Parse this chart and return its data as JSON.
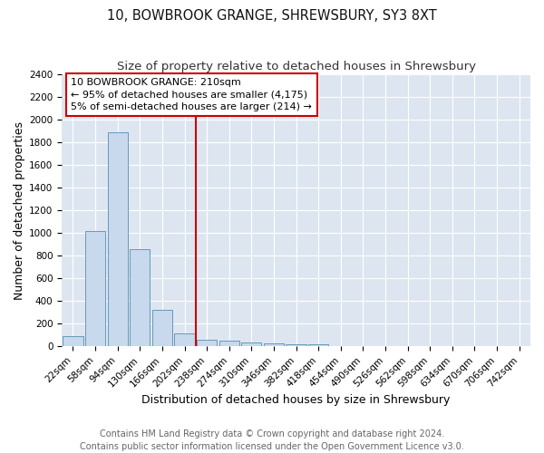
{
  "title": "10, BOWBROOK GRANGE, SHREWSBURY, SY3 8XT",
  "subtitle": "Size of property relative to detached houses in Shrewsbury",
  "xlabel": "Distribution of detached houses by size in Shrewsbury",
  "ylabel": "Number of detached properties",
  "bar_color": "#c8d8ed",
  "bar_edge_color": "#6699bb",
  "plot_bg_color": "#dde6f0",
  "fig_bg_color": "#ffffff",
  "grid_color": "#ffffff",
  "categories": [
    "22sqm",
    "58sqm",
    "94sqm",
    "130sqm",
    "166sqm",
    "202sqm",
    "238sqm",
    "274sqm",
    "310sqm",
    "346sqm",
    "382sqm",
    "418sqm",
    "454sqm",
    "490sqm",
    "526sqm",
    "562sqm",
    "598sqm",
    "634sqm",
    "670sqm",
    "706sqm",
    "742sqm"
  ],
  "values": [
    90,
    1020,
    1890,
    860,
    320,
    115,
    55,
    50,
    38,
    25,
    20,
    20,
    0,
    0,
    0,
    0,
    0,
    0,
    0,
    0,
    0
  ],
  "property_line_label": "10 BOWBROOK GRANGE: 210sqm",
  "annotation_line1": "← 95% of detached houses are smaller (4,175)",
  "annotation_line2": "5% of semi-detached houses are larger (214) →",
  "annotation_box_color": "white",
  "annotation_box_edge_color": "#cc0000",
  "vline_color": "#cc0000",
  "ylim": [
    0,
    2400
  ],
  "yticks": [
    0,
    200,
    400,
    600,
    800,
    1000,
    1200,
    1400,
    1600,
    1800,
    2000,
    2200,
    2400
  ],
  "footer_line1": "Contains HM Land Registry data © Crown copyright and database right 2024.",
  "footer_line2": "Contains public sector information licensed under the Open Government Licence v3.0.",
  "title_fontsize": 10.5,
  "subtitle_fontsize": 9.5,
  "axis_label_fontsize": 9,
  "tick_fontsize": 7.5,
  "annotation_fontsize": 8,
  "footer_fontsize": 7
}
